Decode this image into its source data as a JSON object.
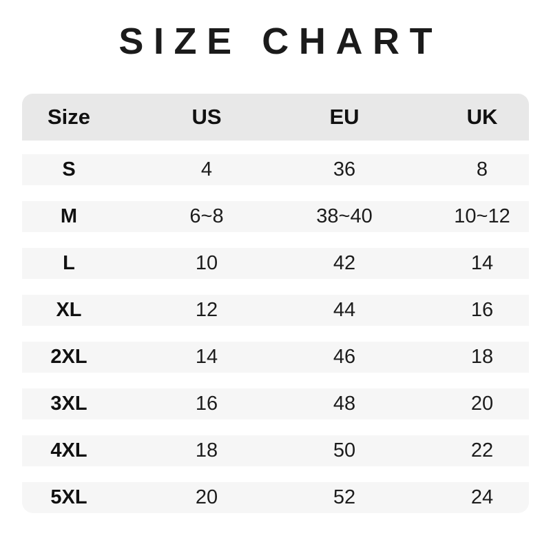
{
  "page": {
    "title": "SIZE CHART",
    "background": "#ffffff"
  },
  "table": {
    "header_bg": "#e8e8e8",
    "row_bg": "#f6f6f6",
    "text_color": "#1c1c1c",
    "columns": [
      "Size",
      "US",
      "EU",
      "UK"
    ]
  },
  "chart_data": {
    "type": "table",
    "title": "SIZE CHART",
    "columns": [
      "Size",
      "US",
      "EU",
      "UK"
    ],
    "rows": [
      [
        "S",
        "4",
        "36",
        "8"
      ],
      [
        "M",
        "6~8",
        "38~40",
        "10~12"
      ],
      [
        "L",
        "10",
        "42",
        "14"
      ],
      [
        "XL",
        "12",
        "44",
        "16"
      ],
      [
        "2XL",
        "14",
        "46",
        "18"
      ],
      [
        "3XL",
        "16",
        "48",
        "20"
      ],
      [
        "4XL",
        "18",
        "50",
        "22"
      ],
      [
        "5XL",
        "20",
        "52",
        "24"
      ]
    ],
    "layout_hints": {
      "header_background": "#e8e8e8",
      "stripe_background": "#f6f6f6",
      "rounded_corners": "header-top and last-row-bottom",
      "column_alignment": "center"
    }
  }
}
